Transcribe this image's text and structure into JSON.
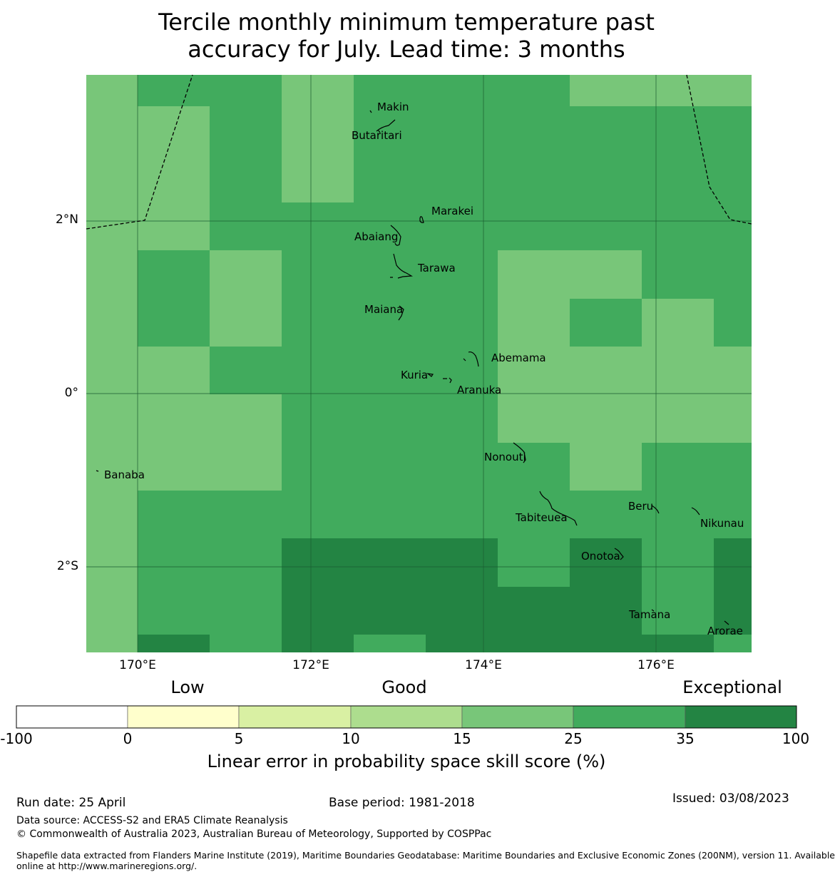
{
  "title": {
    "line1": "Tercile monthly minimum temperature past",
    "line2": "accuracy for July. Lead time: 3 months"
  },
  "map": {
    "lon_ticks": [
      "170°E",
      "172°E",
      "174°E",
      "176°E"
    ],
    "lat_ticks": [
      "2°N",
      "0°",
      "2°S"
    ],
    "places": [
      {
        "name": "Makin"
      },
      {
        "name": "Butaritari"
      },
      {
        "name": "Marakei"
      },
      {
        "name": "Abaiang"
      },
      {
        "name": "Tarawa"
      },
      {
        "name": "Maiana"
      },
      {
        "name": "Abemama"
      },
      {
        "name": "Kuria"
      },
      {
        "name": "Aranuka"
      },
      {
        "name": "Nonouti"
      },
      {
        "name": "Banaba"
      },
      {
        "name": "Beru"
      },
      {
        "name": "Tabiteuea"
      },
      {
        "name": "Nikunau"
      },
      {
        "name": "Onotoa"
      },
      {
        "name": "Tamana"
      },
      {
        "name": "Arorae"
      }
    ],
    "colors": {
      "c15_25": "#78c679",
      "c25_35": "#41ab5d",
      "c35_100": "#238443"
    }
  },
  "colorbar": {
    "words": {
      "low": "Low",
      "good": "Good",
      "exceptional": "Exceptional"
    },
    "ticks": [
      "-100",
      "0",
      "5",
      "10",
      "15",
      "25",
      "35",
      "100"
    ],
    "colors": [
      "#ffffff",
      "#ffffcc",
      "#d9f0a3",
      "#addd8e",
      "#78c679",
      "#41ab5d",
      "#238443"
    ],
    "label": "Linear error in probability space skill score (%)"
  },
  "footer": {
    "run_date": "Run date: 25 April",
    "base_period": "Base period: 1981-2018",
    "issued": "Issued: 03/08/2023",
    "data_source": "Data source: ACCESS-S2 and ERA5 Climate Reanalysis",
    "copyright": "© Commonwealth of Australia 2023, Australian Bureau of Meteorology, Supported by COSPPac",
    "shapefile_line1": "Shapefile data extracted from Flanders Marine Institute (2019), Maritime Boundaries Geodatabase: Maritime Boundaries and Exclusive Economic Zones (200NM), version 11. Available",
    "shapefile_line2": "online at http://www.marineregions.org/."
  }
}
